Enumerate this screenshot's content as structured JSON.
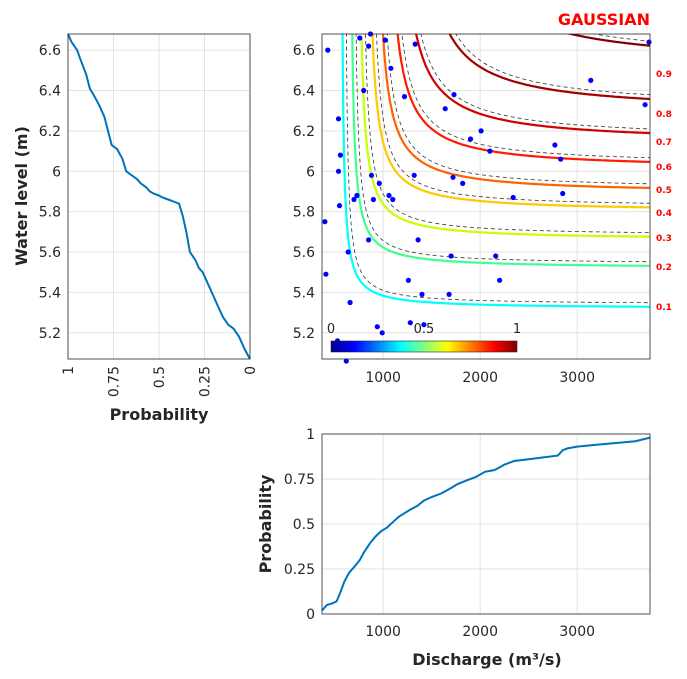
{
  "chart_data": [
    {
      "id": "left-marginal",
      "type": "line",
      "xlabel": "Probability",
      "ylabel": "Water level (m)",
      "xlim": [
        1,
        0
      ],
      "ylim": [
        5.07,
        6.68
      ],
      "xticks": [
        "1",
        "0.75",
        "0.5",
        "0.25",
        "0"
      ],
      "yticks": [
        "5.2",
        "5.4",
        "5.6",
        "5.8",
        "6",
        "6.2",
        "6.4",
        "6.6"
      ],
      "grid": true,
      "color": "#0072bd",
      "series": [
        {
          "x": [
            1.0,
            0.98,
            0.95,
            0.93,
            0.9,
            0.88,
            0.86,
            0.83,
            0.8,
            0.78,
            0.76,
            0.73,
            0.7,
            0.68,
            0.65,
            0.62,
            0.6,
            0.57,
            0.55,
            0.53,
            0.5,
            0.48,
            0.45,
            0.42,
            0.39,
            0.37,
            0.35,
            0.33,
            0.3,
            0.28,
            0.26,
            0.24,
            0.22,
            0.2,
            0.18,
            0.15,
            0.12,
            0.09,
            0.06,
            0.03,
            0.0
          ],
          "y": [
            6.68,
            6.64,
            6.6,
            6.55,
            6.48,
            6.41,
            6.38,
            6.33,
            6.27,
            6.2,
            6.13,
            6.11,
            6.06,
            6.0,
            5.98,
            5.96,
            5.94,
            5.92,
            5.9,
            5.89,
            5.88,
            5.87,
            5.86,
            5.85,
            5.84,
            5.78,
            5.7,
            5.6,
            5.56,
            5.52,
            5.5,
            5.46,
            5.42,
            5.38,
            5.34,
            5.28,
            5.24,
            5.22,
            5.18,
            5.12,
            5.07
          ]
        }
      ]
    },
    {
      "id": "joint-contour",
      "type": "scatter",
      "title": "GAUSSIAN",
      "xlim": [
        370,
        3750
      ],
      "ylim": [
        5.07,
        6.68
      ],
      "xticks": [
        "1000",
        "2000",
        "3000"
      ],
      "yticks": [
        "5.2",
        "5.4",
        "5.6",
        "5.8",
        "6",
        "6.2",
        "6.4",
        "6.6"
      ],
      "grid": true,
      "levels": [
        "0.1",
        "0.2",
        "0.3",
        "0.4",
        "0.5",
        "0.6",
        "0.7",
        "0.8",
        "0.9"
      ],
      "colorbar": {
        "ticks": [
          "0",
          "0.5",
          "1"
        ],
        "colormap": "jet"
      },
      "points": [
        {
          "x": 430,
          "y": 6.6
        },
        {
          "x": 400,
          "y": 5.75
        },
        {
          "x": 410,
          "y": 5.49
        },
        {
          "x": 540,
          "y": 6.26
        },
        {
          "x": 560,
          "y": 6.08
        },
        {
          "x": 540,
          "y": 6.0
        },
        {
          "x": 550,
          "y": 5.83
        },
        {
          "x": 530,
          "y": 5.16
        },
        {
          "x": 640,
          "y": 5.6
        },
        {
          "x": 660,
          "y": 5.35
        },
        {
          "x": 620,
          "y": 5.06
        },
        {
          "x": 700,
          "y": 5.86
        },
        {
          "x": 730,
          "y": 5.88
        },
        {
          "x": 760,
          "y": 6.66
        },
        {
          "x": 800,
          "y": 6.4
        },
        {
          "x": 850,
          "y": 6.62
        },
        {
          "x": 870,
          "y": 6.68
        },
        {
          "x": 880,
          "y": 5.98
        },
        {
          "x": 850,
          "y": 5.66
        },
        {
          "x": 900,
          "y": 5.86
        },
        {
          "x": 940,
          "y": 5.23
        },
        {
          "x": 990,
          "y": 5.2
        },
        {
          "x": 960,
          "y": 5.94
        },
        {
          "x": 1020,
          "y": 6.65
        },
        {
          "x": 1080,
          "y": 6.51
        },
        {
          "x": 1060,
          "y": 5.88
        },
        {
          "x": 1100,
          "y": 5.86
        },
        {
          "x": 1220,
          "y": 6.37
        },
        {
          "x": 1260,
          "y": 5.46
        },
        {
          "x": 1280,
          "y": 5.25
        },
        {
          "x": 1330,
          "y": 6.63
        },
        {
          "x": 1320,
          "y": 5.98
        },
        {
          "x": 1360,
          "y": 5.66
        },
        {
          "x": 1400,
          "y": 5.39
        },
        {
          "x": 1420,
          "y": 5.24
        },
        {
          "x": 1640,
          "y": 6.31
        },
        {
          "x": 1730,
          "y": 6.38
        },
        {
          "x": 1720,
          "y": 5.97
        },
        {
          "x": 1700,
          "y": 5.58
        },
        {
          "x": 1680,
          "y": 5.39
        },
        {
          "x": 1820,
          "y": 5.94
        },
        {
          "x": 1900,
          "y": 6.16
        },
        {
          "x": 2010,
          "y": 6.2
        },
        {
          "x": 2100,
          "y": 6.1
        },
        {
          "x": 2160,
          "y": 5.58
        },
        {
          "x": 2200,
          "y": 5.46
        },
        {
          "x": 2340,
          "y": 5.87
        },
        {
          "x": 2770,
          "y": 6.13
        },
        {
          "x": 2830,
          "y": 6.06
        },
        {
          "x": 2850,
          "y": 5.89
        },
        {
          "x": 3140,
          "y": 6.45
        },
        {
          "x": 3700,
          "y": 6.33
        },
        {
          "x": 3740,
          "y": 6.64
        }
      ]
    },
    {
      "id": "bottom-marginal",
      "type": "line",
      "xlabel": "Discharge (m³/s)",
      "ylabel": "Probability",
      "xlim": [
        370,
        3750
      ],
      "ylim": [
        0,
        1
      ],
      "xticks": [
        "1000",
        "2000",
        "3000"
      ],
      "yticks": [
        "0",
        "0.25",
        "0.5",
        "0.75",
        "1"
      ],
      "grid": true,
      "color": "#0072bd",
      "series": [
        {
          "x": [
            370,
            420,
            480,
            520,
            560,
            600,
            650,
            700,
            760,
            800,
            860,
            920,
            980,
            1040,
            1100,
            1160,
            1220,
            1280,
            1350,
            1420,
            1500,
            1600,
            1700,
            1760,
            1850,
            1950,
            2050,
            2150,
            2250,
            2350,
            2500,
            2650,
            2800,
            2850,
            2900,
            3000,
            3200,
            3400,
            3600,
            3750
          ],
          "y": [
            0.02,
            0.05,
            0.06,
            0.07,
            0.12,
            0.18,
            0.23,
            0.26,
            0.3,
            0.34,
            0.39,
            0.43,
            0.46,
            0.48,
            0.51,
            0.54,
            0.56,
            0.58,
            0.6,
            0.63,
            0.65,
            0.67,
            0.7,
            0.72,
            0.74,
            0.76,
            0.79,
            0.8,
            0.83,
            0.85,
            0.86,
            0.87,
            0.88,
            0.91,
            0.92,
            0.93,
            0.94,
            0.95,
            0.96,
            0.98
          ]
        }
      ]
    }
  ]
}
